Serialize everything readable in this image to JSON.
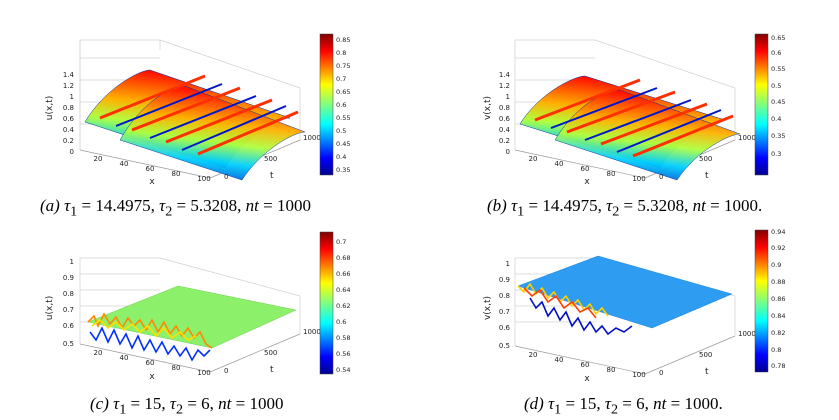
{
  "panels": [
    {
      "id": "a",
      "zlabel": "u(x,t)",
      "zticks": [
        "0",
        "0.2",
        "0.4",
        "0.6",
        "0.8",
        "1",
        "1.2",
        "1.4"
      ],
      "xlabel": "x",
      "xticks": [
        "20",
        "40",
        "60",
        "80",
        "100"
      ],
      "tlabel": "t",
      "tticks": [
        "0",
        "500",
        "1000"
      ],
      "colorbar": [
        "0.85",
        "0.8",
        "0.75",
        "0.7",
        "0.65",
        "0.6",
        "0.55",
        "0.5",
        "0.45",
        "0.4",
        "0.35"
      ],
      "caption": {
        "label": "(a)",
        "params": [
          {
            "sym": "τ",
            "sub": "1",
            "value": "14.4975"
          },
          {
            "sym": "τ",
            "sub": "2",
            "value": "5.3208"
          },
          {
            "sym": "nt",
            "sub": "",
            "value": "1000"
          }
        ],
        "end": ""
      }
    },
    {
      "id": "b",
      "zlabel": "v(x,t)",
      "zticks": [
        "0",
        "0.2",
        "0.4",
        "0.6",
        "0.8",
        "1",
        "1.2",
        "1.4"
      ],
      "xlabel": "x",
      "xticks": [
        "20",
        "40",
        "60",
        "80",
        "100"
      ],
      "tlabel": "t",
      "tticks": [
        "0",
        "500",
        "1000"
      ],
      "colorbar": [
        "0.65",
        "0.6",
        "0.55",
        "0.5",
        "0.45",
        "0.4",
        "0.35",
        "0.3"
      ],
      "caption": {
        "label": "(b)",
        "params": [
          {
            "sym": "τ",
            "sub": "1",
            "value": "14.4975"
          },
          {
            "sym": "τ",
            "sub": "2",
            "value": "5.3208"
          },
          {
            "sym": "nt",
            "sub": "",
            "value": "1000"
          }
        ],
        "end": "."
      }
    },
    {
      "id": "c",
      "zlabel": "u(x,t)",
      "zticks": [
        "0.5",
        "0.6",
        "0.7",
        "0.8",
        "0.9",
        "1"
      ],
      "xlabel": "x",
      "xticks": [
        "20",
        "40",
        "60",
        "80",
        "100"
      ],
      "tlabel": "t",
      "tticks": [
        "0",
        "500",
        "1000"
      ],
      "colorbar": [
        "0.7",
        "0.68",
        "0.66",
        "0.64",
        "0.62",
        "0.6",
        "0.58",
        "0.56",
        "0.54"
      ],
      "caption": {
        "label": "(c)",
        "params": [
          {
            "sym": "τ",
            "sub": "1",
            "value": "15"
          },
          {
            "sym": "τ",
            "sub": "2",
            "value": "6"
          },
          {
            "sym": "nt",
            "sub": "",
            "value": "1000"
          }
        ],
        "end": ""
      }
    },
    {
      "id": "d",
      "zlabel": "v(x,t)",
      "zticks": [
        "0.5",
        "0.6",
        "0.7",
        "0.8",
        "0.9",
        "1"
      ],
      "xlabel": "x",
      "xticks": [
        "20",
        "40",
        "60",
        "80",
        "100"
      ],
      "tlabel": "t",
      "tticks": [
        "0",
        "500",
        "1000"
      ],
      "colorbar": [
        "0.94",
        "0.92",
        "0.9",
        "0.88",
        "0.86",
        "0.84",
        "0.82",
        "0.8",
        "0.78"
      ],
      "caption": {
        "label": "(d)",
        "params": [
          {
            "sym": "τ",
            "sub": "1",
            "value": "15"
          },
          {
            "sym": "τ",
            "sub": "2",
            "value": "6"
          },
          {
            "sym": "nt",
            "sub": "",
            "value": "1000"
          }
        ],
        "end": "."
      }
    }
  ]
}
